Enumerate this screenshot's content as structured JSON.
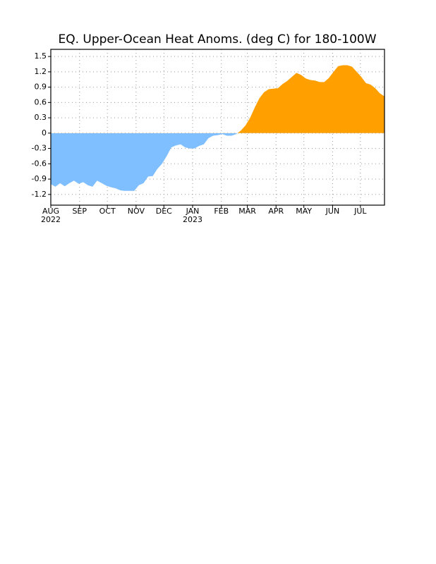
{
  "chart_data": {
    "type": "area",
    "title": "EQ. Upper-Ocean Heat Anoms. (deg C) for 180-100W",
    "x": [
      0,
      5,
      10,
      15,
      20,
      25,
      30,
      35,
      40,
      45,
      50,
      55,
      60,
      65,
      70,
      75,
      80,
      85,
      90,
      95,
      100,
      105,
      110,
      115,
      120,
      125,
      130,
      135,
      140,
      145,
      150,
      155,
      160,
      165,
      170,
      175,
      180,
      185,
      190,
      195,
      200,
      205,
      210,
      215,
      220,
      225,
      230,
      235,
      240,
      245,
      250,
      255,
      260,
      265,
      270,
      275,
      280,
      285,
      290,
      295,
      300,
      305,
      310,
      315,
      320,
      325,
      330,
      335,
      340,
      345,
      350,
      355,
      360
    ],
    "values": [
      -1.0,
      -1.05,
      -0.98,
      -1.04,
      -0.98,
      -0.93,
      -0.99,
      -0.96,
      -1.02,
      -1.05,
      -0.93,
      -0.98,
      -1.03,
      -1.06,
      -1.08,
      -1.12,
      -1.13,
      -1.13,
      -1.13,
      -1.02,
      -0.98,
      -0.85,
      -0.84,
      -0.7,
      -0.6,
      -0.45,
      -0.28,
      -0.24,
      -0.22,
      -0.28,
      -0.3,
      -0.3,
      -0.25,
      -0.22,
      -0.1,
      -0.05,
      -0.04,
      -0.02,
      -0.05,
      -0.05,
      -0.02,
      0.05,
      0.15,
      0.3,
      0.5,
      0.68,
      0.8,
      0.86,
      0.87,
      0.88,
      0.96,
      1.02,
      1.1,
      1.18,
      1.14,
      1.07,
      1.04,
      1.03,
      1.0,
      1.0,
      1.08,
      1.2,
      1.31,
      1.33,
      1.33,
      1.3,
      1.2,
      1.1,
      0.98,
      0.95,
      0.88,
      0.78,
      0.72
    ],
    "positive_color": "#ffa000",
    "negative_color": "#80bfff",
    "xlim": [
      0,
      360
    ],
    "xticks": [
      {
        "value": 0,
        "label": "AUG"
      },
      {
        "value": 31,
        "label": "SEP"
      },
      {
        "value": 61,
        "label": "OCT"
      },
      {
        "value": 92,
        "label": "NOV"
      },
      {
        "value": 122,
        "label": "DEC"
      },
      {
        "value": 153,
        "label": "JAN"
      },
      {
        "value": 184,
        "label": "FEB"
      },
      {
        "value": 212,
        "label": "MAR"
      },
      {
        "value": 243,
        "label": "APR"
      },
      {
        "value": 273,
        "label": "MAY"
      },
      {
        "value": 304,
        "label": "JUN"
      },
      {
        "value": 334,
        "label": "JUL"
      }
    ],
    "year_labels": [
      {
        "value": 0,
        "label": "2022"
      },
      {
        "value": 153,
        "label": "2023"
      }
    ],
    "ylim": [
      -1.41,
      1.64
    ],
    "yticks": [
      -1.2,
      -0.9,
      -0.6,
      -0.3,
      0,
      0.3,
      0.6,
      0.9,
      1.2,
      1.5
    ],
    "grid": true
  }
}
